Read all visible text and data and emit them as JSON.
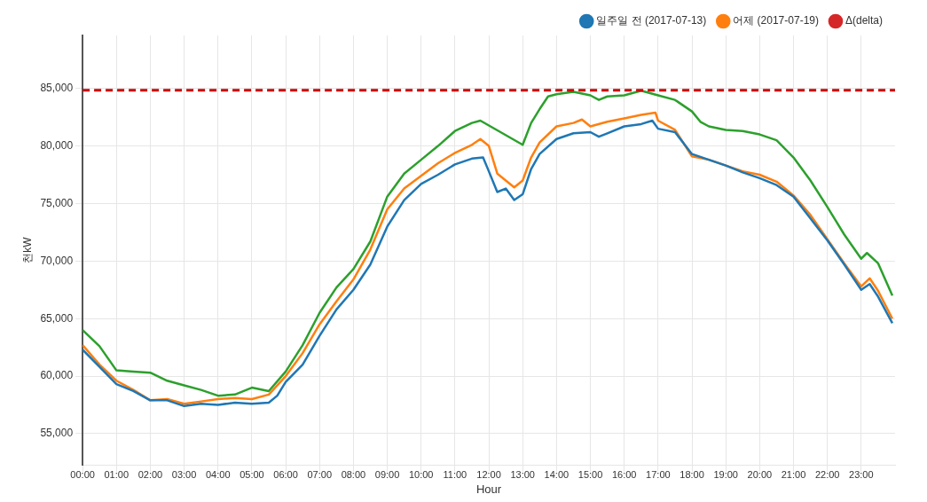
{
  "chart_data": {
    "type": "line",
    "xlabel": "Hour",
    "ylabel": "천kW",
    "legend": "top right",
    "grid": true,
    "marker": "none",
    "line_style": "solid",
    "xlim": [
      0,
      24
    ],
    "ylim": [
      52300,
      89600
    ],
    "xticks": [
      {
        "value": 0,
        "label": "00:00"
      },
      {
        "value": 1,
        "label": "01:00"
      },
      {
        "value": 2,
        "label": "02:00"
      },
      {
        "value": 3,
        "label": "03:00"
      },
      {
        "value": 4,
        "label": "04:00"
      },
      {
        "value": 5,
        "label": "05:00"
      },
      {
        "value": 6,
        "label": "06:00"
      },
      {
        "value": 7,
        "label": "07:00"
      },
      {
        "value": 8,
        "label": "08:00"
      },
      {
        "value": 9,
        "label": "09:00"
      },
      {
        "value": 10,
        "label": "10:00"
      },
      {
        "value": 11,
        "label": "11:00"
      },
      {
        "value": 12,
        "label": "12:00"
      },
      {
        "value": 13,
        "label": "13:00"
      },
      {
        "value": 14,
        "label": "14:00"
      },
      {
        "value": 15,
        "label": "15:00"
      },
      {
        "value": 16,
        "label": "16:00"
      },
      {
        "value": 17,
        "label": "17:00"
      },
      {
        "value": 18,
        "label": "18:00"
      },
      {
        "value": 19,
        "label": "19:00"
      },
      {
        "value": 20,
        "label": "20:00"
      },
      {
        "value": 21,
        "label": "21:00"
      },
      {
        "value": 22,
        "label": "22:00"
      },
      {
        "value": 23,
        "label": "23:00"
      }
    ],
    "yticks": [
      {
        "value": 55000,
        "label": "55,000"
      },
      {
        "value": 60000,
        "label": "60,000"
      },
      {
        "value": 65000,
        "label": "65,000"
      },
      {
        "value": 70000,
        "label": "70,000"
      },
      {
        "value": 75000,
        "label": "75,000"
      },
      {
        "value": 80000,
        "label": "80,000"
      },
      {
        "value": 85000,
        "label": "85,000"
      }
    ],
    "ref_lines": [
      {
        "axis": "y",
        "value": 84850,
        "color": "#cc0000",
        "line_style": "dashed"
      }
    ],
    "series": [
      {
        "name": "일주일 전 (2017-07-13)",
        "color": "#1f77b4",
        "x": [
          0,
          0.5,
          1,
          1.5,
          2,
          2.5,
          3,
          3.5,
          4,
          4.5,
          5,
          5.5,
          5.75,
          6,
          6.5,
          7,
          7.5,
          8,
          8.5,
          9,
          9.5,
          10,
          10.5,
          11,
          11.5,
          11.83,
          12,
          12.25,
          12.5,
          12.75,
          13,
          13.25,
          13.5,
          14,
          14.5,
          15,
          15.25,
          15.5,
          16,
          16.5,
          16.83,
          17,
          17.5,
          18,
          18.5,
          19,
          19.5,
          20,
          20.5,
          21,
          21.5,
          22,
          22.5,
          23,
          23.25,
          23.5,
          23.92
        ],
        "values": [
          62300,
          60800,
          59300,
          58700,
          57900,
          57900,
          57400,
          57600,
          57500,
          57700,
          57600,
          57700,
          58300,
          59500,
          61000,
          63500,
          65800,
          67500,
          69700,
          73000,
          75300,
          76700,
          77500,
          78400,
          78900,
          79000,
          77800,
          76000,
          76300,
          75300,
          75800,
          78000,
          79300,
          80600,
          81100,
          81200,
          80800,
          81100,
          81700,
          81900,
          82200,
          81500,
          81200,
          79300,
          78800,
          78300,
          77700,
          77200,
          76600,
          75600,
          73700,
          71800,
          69700,
          67500,
          68000,
          66900,
          64600
        ]
      },
      {
        "name": "어제 (2017-07-19)",
        "color": "#ff7f0e",
        "x": [
          0,
          0.5,
          1,
          1.5,
          2,
          2.5,
          3,
          3.5,
          4,
          4.5,
          5,
          5.5,
          6,
          6.5,
          7,
          7.5,
          8,
          8.5,
          9,
          9.5,
          10,
          10.5,
          11,
          11.5,
          11.75,
          12,
          12.25,
          12.5,
          12.75,
          13,
          13.25,
          13.5,
          14,
          14.5,
          14.75,
          15,
          15.5,
          16,
          16.5,
          16.92,
          17,
          17.5,
          18,
          18.5,
          19,
          19.5,
          20,
          20.5,
          21,
          21.5,
          22,
          22.5,
          23,
          23.25,
          23.5,
          23.92
        ],
        "values": [
          62700,
          61000,
          59600,
          58800,
          57900,
          58000,
          57600,
          57800,
          58000,
          58100,
          58000,
          58400,
          60000,
          62000,
          64500,
          66500,
          68400,
          71000,
          74500,
          76300,
          77400,
          78500,
          79400,
          80100,
          80600,
          80000,
          77600,
          77000,
          76400,
          77000,
          79000,
          80300,
          81700,
          82000,
          82300,
          81700,
          82100,
          82400,
          82700,
          82900,
          82200,
          81400,
          79100,
          78800,
          78300,
          77800,
          77500,
          76900,
          75700,
          74000,
          71900,
          69800,
          67800,
          68500,
          67400,
          65000
        ]
      },
      {
        "color": "#2ca02c",
        "x": [
          0,
          0.5,
          1,
          1.5,
          2,
          2.5,
          3,
          3.5,
          4,
          4.5,
          5,
          5.5,
          6,
          6.5,
          7,
          7.5,
          8,
          8.5,
          9,
          9.5,
          10,
          10.5,
          11,
          11.5,
          11.75,
          13,
          13.25,
          13.5,
          13.75,
          14,
          14.5,
          15,
          15.25,
          15.5,
          16,
          16.5,
          17,
          17.5,
          18,
          18.25,
          18.5,
          19,
          19.5,
          20,
          20.5,
          21,
          21.5,
          22,
          22.5,
          23,
          23.17,
          23.5,
          23.92
        ],
        "values": [
          64000,
          62600,
          60500,
          60400,
          60300,
          59600,
          59200,
          58800,
          58300,
          58400,
          59000,
          58700,
          60400,
          62700,
          65500,
          67700,
          69300,
          71700,
          75600,
          77600,
          78800,
          80000,
          81300,
          82000,
          82200,
          80100,
          82000,
          83200,
          84300,
          84500,
          84700,
          84400,
          84000,
          84300,
          84400,
          84800,
          84400,
          84000,
          83000,
          82100,
          81700,
          81400,
          81300,
          81000,
          80500,
          79000,
          77000,
          74700,
          72300,
          70200,
          70700,
          69800,
          67000
        ]
      },
      {
        "name": "Δ(delta)",
        "color": "#d62728",
        "values": [
          null
        ]
      }
    ]
  }
}
